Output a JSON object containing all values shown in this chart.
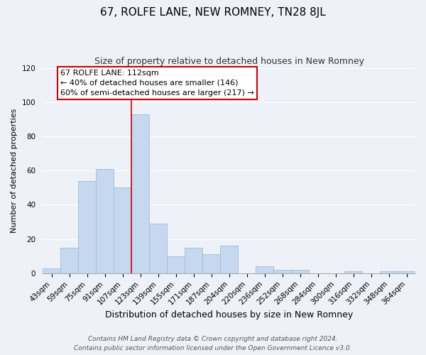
{
  "title": "67, ROLFE LANE, NEW ROMNEY, TN28 8JL",
  "subtitle": "Size of property relative to detached houses in New Romney",
  "xlabel": "Distribution of detached houses by size in New Romney",
  "ylabel": "Number of detached properties",
  "categories": [
    "43sqm",
    "59sqm",
    "75sqm",
    "91sqm",
    "107sqm",
    "123sqm",
    "139sqm",
    "155sqm",
    "171sqm",
    "187sqm",
    "204sqm",
    "220sqm",
    "236sqm",
    "252sqm",
    "268sqm",
    "284sqm",
    "300sqm",
    "316sqm",
    "332sqm",
    "348sqm",
    "364sqm"
  ],
  "values": [
    3,
    15,
    54,
    61,
    50,
    93,
    29,
    10,
    15,
    11,
    16,
    0,
    4,
    2,
    2,
    0,
    0,
    1,
    0,
    1,
    1
  ],
  "bar_color": "#c5d8f0",
  "bar_edge_color": "#a0bcd8",
  "vline_color": "#cc0000",
  "vline_x": 4.5,
  "annotation_line1": "67 ROLFE LANE: 112sqm",
  "annotation_line2": "← 40% of detached houses are smaller (146)",
  "annotation_line3": "60% of semi-detached houses are larger (217) →",
  "annotation_box_color": "#ffffff",
  "annotation_box_edge": "#cc0000",
  "ylim": [
    0,
    120
  ],
  "yticks": [
    0,
    20,
    40,
    60,
    80,
    100,
    120
  ],
  "footer_line1": "Contains HM Land Registry data © Crown copyright and database right 2024.",
  "footer_line2": "Contains public sector information licensed under the Open Government Licence v3.0.",
  "bg_color": "#eef2f8",
  "plot_bg_color": "#eef2f8",
  "grid_color": "#ffffff",
  "title_fontsize": 11,
  "subtitle_fontsize": 9,
  "xlabel_fontsize": 9,
  "ylabel_fontsize": 8,
  "tick_fontsize": 7.5,
  "annotation_fontsize": 8,
  "footer_fontsize": 6.5
}
